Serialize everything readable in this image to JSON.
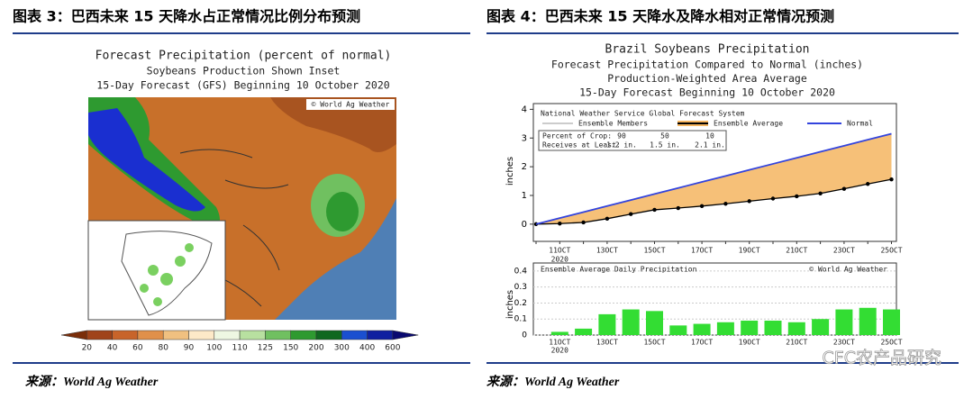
{
  "header": {
    "left": "图表 3：巴西未来 15 天降水占正常情况比例分布预测",
    "right": "图表 4：巴西未来 15 天降水及降水相对正常情况预测"
  },
  "map": {
    "title": "Forecast Precipitation (percent of normal)",
    "subtitle": "Soybeans Production Shown Inset",
    "subtitle2": "15-Day Forecast (GFS) Beginning 10 October 2020",
    "credit": "© World Ag Weather",
    "colorbar": [
      20,
      40,
      60,
      80,
      90,
      100,
      110,
      125,
      150,
      200,
      300,
      400,
      600
    ]
  },
  "chart_data": [
    {
      "type": "line",
      "title": "Brazil Soybeans Precipitation",
      "subtitle": [
        "Forecast Precipitation Compared to Normal (inches)",
        "Production-Weighted Area Average",
        "15-Day Forecast Beginning 10 October 2020"
      ],
      "ylabel": "inches",
      "legend_title": "National Weather Service Global Forecast System",
      "member_legend": "Ensemble Members",
      "crop_table": [
        [
          "Percent of Crop:",
          "90",
          "50",
          "10"
        ],
        [
          "Receives at Least:",
          "1.2 in.",
          "1.5 in.",
          "2.1 in."
        ]
      ],
      "categories": [
        null,
        "11OCT",
        null,
        "13OCT",
        null,
        "15OCT",
        null,
        "17OCT",
        null,
        "19OCT",
        null,
        "21OCT",
        null,
        "23OCT",
        null,
        "25OCT"
      ],
      "year_label": "2020",
      "ylim": [
        -0.6,
        4.2
      ],
      "yticks": [
        0,
        1,
        2,
        3,
        4
      ],
      "series": [
        {
          "name": "Ensemble Average",
          "color": "#000000",
          "values": [
            0,
            0.02,
            0.06,
            0.19,
            0.35,
            0.5,
            0.56,
            0.63,
            0.71,
            0.8,
            0.89,
            0.97,
            1.07,
            1.23,
            1.4,
            1.56
          ]
        },
        {
          "name": "Normal",
          "color": "#3344dd",
          "values": [
            0,
            0.21,
            0.42,
            0.63,
            0.84,
            1.05,
            1.26,
            1.47,
            1.68,
            1.89,
            2.1,
            2.31,
            2.52,
            2.73,
            2.94,
            3.15
          ]
        }
      ],
      "area_color": "#f5b560"
    },
    {
      "type": "bar",
      "title": "Ensemble Average Daily Precipitation",
      "credit": "© World Ag Weather",
      "ylabel": "inches",
      "categories": [
        "11OCT",
        null,
        "13OCT",
        null,
        "15OCT",
        null,
        "17OCT",
        null,
        "19OCT",
        null,
        "21OCT",
        null,
        "23OCT",
        null,
        "25OCT"
      ],
      "year_label": "2020",
      "values": [
        0.02,
        0.04,
        0.13,
        0.16,
        0.15,
        0.06,
        0.07,
        0.08,
        0.09,
        0.09,
        0.08,
        0.1,
        0.16,
        0.17,
        0.16
      ],
      "color": "#33dd33",
      "ylim": [
        0,
        0.45
      ],
      "yticks": [
        0,
        0.1,
        0.2,
        0.3,
        0.4
      ]
    }
  ],
  "footer": {
    "left": "来源：World Ag Weather",
    "right": "来源：World Ag Weather",
    "watermark": "CFC农产品研究"
  }
}
